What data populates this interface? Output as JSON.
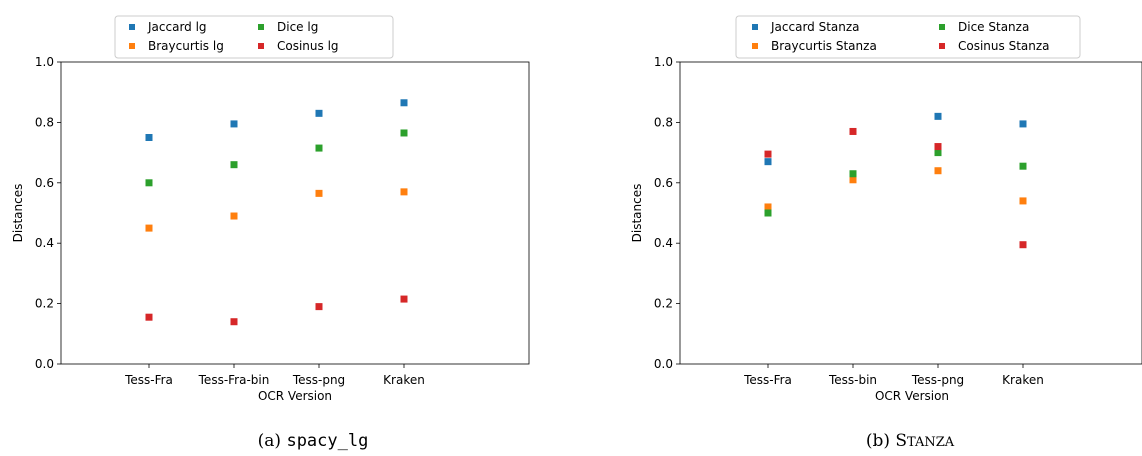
{
  "captions": [
    {
      "prefix": "(a) ",
      "name": "spacy_lg",
      "style": "monospace"
    },
    {
      "prefix": "(b) ",
      "name": "Stanza",
      "style": "small-caps"
    }
  ],
  "chart_data": [
    {
      "type": "scatter",
      "xlabel": "OCR Version",
      "ylabel": "Distances",
      "ylim": [
        0.0,
        1.0
      ],
      "yticks": [
        "0.0",
        "0.2",
        "0.4",
        "0.6",
        "0.8",
        "1.0"
      ],
      "categories": [
        "Tess-Fra",
        "Tess-Fra-bin",
        "Tess-png",
        "Kraken"
      ],
      "grid": false,
      "legend": "top-center, outside plot, 2 columns",
      "series": [
        {
          "name": "Jaccard lg",
          "color": "#1f77b4",
          "values": [
            0.75,
            0.795,
            0.83,
            0.865
          ]
        },
        {
          "name": "Braycurtis lg",
          "color": "#ff7f0e",
          "values": [
            0.45,
            0.49,
            0.565,
            0.57
          ]
        },
        {
          "name": "Dice lg",
          "color": "#2ca02c",
          "values": [
            0.6,
            0.66,
            0.715,
            0.765
          ]
        },
        {
          "name": "Cosinus lg",
          "color": "#d62728",
          "values": [
            0.155,
            0.14,
            0.19,
            0.215
          ]
        }
      ]
    },
    {
      "type": "scatter",
      "xlabel": "OCR Version",
      "ylabel": "Distances",
      "ylim": [
        0.0,
        1.0
      ],
      "yticks": [
        "0.0",
        "0.2",
        "0.4",
        "0.6",
        "0.8",
        "1.0"
      ],
      "categories": [
        "Tess-Fra",
        "Tess-bin",
        "Tess-png",
        "Kraken"
      ],
      "grid": false,
      "legend": "top-center, outside plot, 2 columns",
      "series": [
        {
          "name": "Jaccard Stanza",
          "color": "#1f77b4",
          "values": [
            0.67,
            0.625,
            0.82,
            0.795
          ]
        },
        {
          "name": "Braycurtis Stanza",
          "color": "#ff7f0e",
          "values": [
            0.52,
            0.61,
            0.64,
            0.54
          ]
        },
        {
          "name": "Dice Stanza",
          "color": "#2ca02c",
          "values": [
            0.5,
            0.63,
            0.7,
            0.655
          ]
        },
        {
          "name": "Cosinus Stanza",
          "color": "#d62728",
          "values": [
            0.695,
            0.77,
            0.72,
            0.395
          ]
        }
      ]
    }
  ]
}
